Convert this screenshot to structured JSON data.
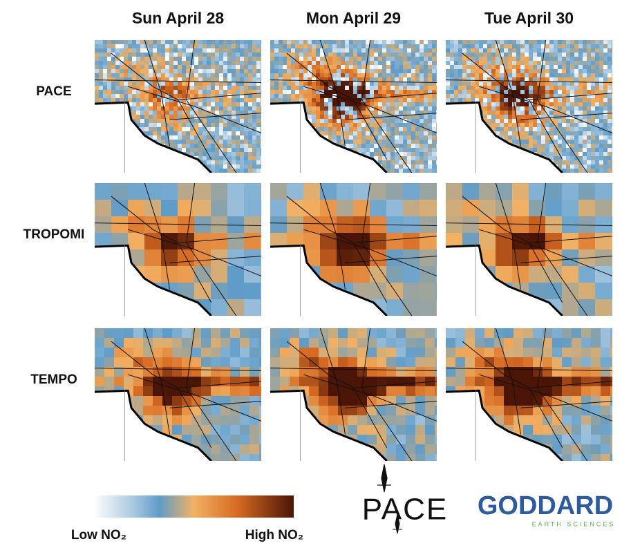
{
  "columns": [
    "Sun April 28",
    "Mon April 29",
    "Tue April 30"
  ],
  "rows": [
    "PACE",
    "TROPOMI",
    "TEMPO"
  ],
  "legend": {
    "low": "Low NO₂",
    "high": "High NO₂"
  },
  "logos": {
    "pace": "PACE",
    "goddard": "GODDARD",
    "goddard_sub": "EARTH SCIENCES"
  }
}
